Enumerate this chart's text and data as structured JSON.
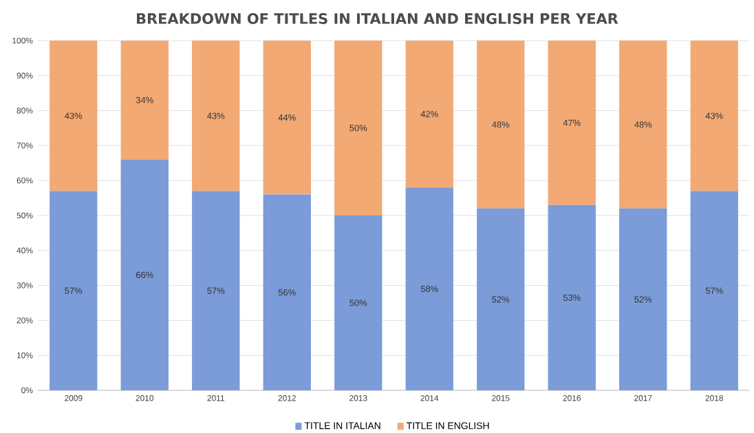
{
  "chart_data": {
    "type": "bar",
    "stacked": true,
    "title": "BREAKDOWN OF TITLES IN ITALIAN AND ENGLISH PER YEAR",
    "categories": [
      "2009",
      "2010",
      "2011",
      "2012",
      "2013",
      "2014",
      "2015",
      "2016",
      "2017",
      "2018"
    ],
    "series": [
      {
        "name": "TITLE IN ITALIAN",
        "color": "#7b9bd9",
        "values": [
          57,
          66,
          57,
          56,
          50,
          58,
          52,
          53,
          52,
          57
        ],
        "value_labels": [
          "57%",
          "66%",
          "57%",
          "56%",
          "50%",
          "58%",
          "52%",
          "53%",
          "52%",
          "57%"
        ]
      },
      {
        "name": "TITLE IN ENGLISH",
        "color": "#f2a974",
        "values": [
          43,
          34,
          43,
          44,
          50,
          42,
          48,
          47,
          48,
          43
        ],
        "value_labels": [
          "43%",
          "34%",
          "43%",
          "44%",
          "50%",
          "42%",
          "48%",
          "47%",
          "48%",
          "43%"
        ]
      }
    ],
    "ylim": [
      0,
      100
    ],
    "yticks": [
      {
        "value": 0,
        "label": "0%"
      },
      {
        "value": 10,
        "label": "10%"
      },
      {
        "value": 20,
        "label": "20%"
      },
      {
        "value": 30,
        "label": "30%"
      },
      {
        "value": 40,
        "label": "40%"
      },
      {
        "value": 50,
        "label": "50%"
      },
      {
        "value": 60,
        "label": "60%"
      },
      {
        "value": 70,
        "label": "70%"
      },
      {
        "value": 80,
        "label": "80%"
      },
      {
        "value": 90,
        "label": "90%"
      },
      {
        "value": 100,
        "label": "100%"
      }
    ],
    "grid": "y",
    "legend": "bottom"
  }
}
